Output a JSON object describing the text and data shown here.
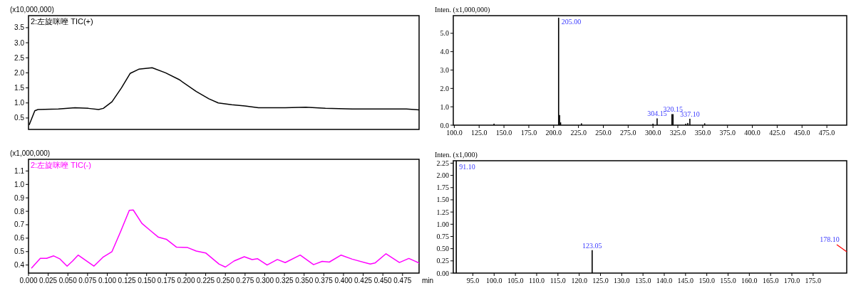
{
  "chart_data": [
    {
      "type": "line",
      "title": "2:左旋咪唑 TIC(+)",
      "ylabel": "(x10,000,000)",
      "xlim": [
        0,
        0.496
      ],
      "ylim": [
        0.12,
        3.9
      ],
      "tick_labels": "y",
      "yticks": [
        {
          "value": 0.5,
          "label": "0.5"
        },
        {
          "value": 1,
          "label": "1.0"
        },
        {
          "value": 1.5,
          "label": "1.5"
        },
        {
          "value": 2,
          "label": "2.0"
        },
        {
          "value": 2.5,
          "label": "2.5"
        },
        {
          "value": 3,
          "label": "3.0"
        },
        {
          "value": 3.5,
          "label": "3.5"
        }
      ],
      "series": [
        {
          "color": "#000000",
          "x": [
            0.001,
            0.008,
            0.012,
            0.038,
            0.059,
            0.076,
            0.089,
            0.095,
            0.106,
            0.118,
            0.129,
            0.14,
            0.157,
            0.174,
            0.191,
            0.213,
            0.229,
            0.241,
            0.258,
            0.275,
            0.292,
            0.326,
            0.352,
            0.377,
            0.411,
            0.445,
            0.48,
            0.496
          ],
          "values": [
            0.28,
            0.74,
            0.78,
            0.8,
            0.84,
            0.82,
            0.78,
            0.82,
            1.04,
            1.5,
            1.98,
            2.12,
            2.17,
            2.0,
            1.78,
            1.38,
            1.14,
            1.0,
            0.94,
            0.9,
            0.84,
            0.84,
            0.86,
            0.82,
            0.8,
            0.8,
            0.8,
            0.77
          ]
        }
      ]
    },
    {
      "type": "line",
      "title": "2:左旋咪唑 TIC(-)",
      "ylabel": "(x1,000,000)",
      "xlabel": "min",
      "xlim": [
        0,
        0.496
      ],
      "ylim": [
        0.34,
        1.187
      ],
      "xticks": [
        {
          "value": 0,
          "label": "0.000"
        },
        {
          "value": 0.025,
          "label": "0.025"
        },
        {
          "value": 0.05,
          "label": "0.050"
        },
        {
          "value": 0.075,
          "label": "0.075"
        },
        {
          "value": 0.1,
          "label": "0.100"
        },
        {
          "value": 0.125,
          "label": "0.125"
        },
        {
          "value": 0.15,
          "label": "0.150"
        },
        {
          "value": 0.175,
          "label": "0.175"
        },
        {
          "value": 0.2,
          "label": "0.200"
        },
        {
          "value": 0.225,
          "label": "0.225"
        },
        {
          "value": 0.25,
          "label": "0.250"
        },
        {
          "value": 0.275,
          "label": "0.275"
        },
        {
          "value": 0.3,
          "label": "0.300"
        },
        {
          "value": 0.325,
          "label": "0.325"
        },
        {
          "value": 0.35,
          "label": "0.350"
        },
        {
          "value": 0.375,
          "label": "0.375"
        },
        {
          "value": 0.4,
          "label": "0.400"
        },
        {
          "value": 0.425,
          "label": "0.425"
        },
        {
          "value": 0.45,
          "label": "0.450"
        },
        {
          "value": 0.475,
          "label": "0.475"
        }
      ],
      "yticks": [
        0.4,
        0.5,
        0.6,
        0.7,
        0.8,
        0.9,
        {
          "value": 1,
          "label": "1.0"
        },
        1.1
      ],
      "series": [
        {
          "color": "#ff00ff",
          "x": [
            0.004,
            0.015,
            0.023,
            0.032,
            0.04,
            0.049,
            0.056,
            0.063,
            0.072,
            0.083,
            0.095,
            0.106,
            0.117,
            0.128,
            0.133,
            0.144,
            0.154,
            0.165,
            0.175,
            0.188,
            0.202,
            0.213,
            0.225,
            0.242,
            0.25,
            0.261,
            0.274,
            0.284,
            0.291,
            0.303,
            0.316,
            0.326,
            0.345,
            0.362,
            0.373,
            0.382,
            0.397,
            0.411,
            0.434,
            0.44,
            0.454,
            0.471,
            0.483,
            0.496
          ],
          "values": [
            0.378,
            0.45,
            0.45,
            0.468,
            0.445,
            0.392,
            0.43,
            0.474,
            0.437,
            0.392,
            0.46,
            0.5,
            0.65,
            0.807,
            0.81,
            0.71,
            0.66,
            0.607,
            0.592,
            0.533,
            0.53,
            0.504,
            0.49,
            0.407,
            0.385,
            0.43,
            0.462,
            0.441,
            0.447,
            0.4,
            0.441,
            0.418,
            0.474,
            0.403,
            0.427,
            0.422,
            0.474,
            0.444,
            0.407,
            0.415,
            0.484,
            0.419,
            0.449,
            0.415
          ]
        }
      ]
    },
    {
      "type": "bar",
      "ylabel": "Inten. (x1,000,000)",
      "xlim": [
        99,
        495
      ],
      "ylim": [
        0,
        5.96
      ],
      "xticks": [
        {
          "value": 100,
          "label": "100.0"
        },
        {
          "value": 125,
          "label": "125.0"
        },
        {
          "value": 150,
          "label": "150.0"
        },
        {
          "value": 175,
          "label": "175.0"
        },
        {
          "value": 200,
          "label": "200.0"
        },
        {
          "value": 225,
          "label": "225.0"
        },
        {
          "value": 250,
          "label": "250.0"
        },
        {
          "value": 275,
          "label": "275.0"
        },
        {
          "value": 300,
          "label": "300.0"
        },
        {
          "value": 325,
          "label": "325.0"
        },
        {
          "value": 350,
          "label": "350.0"
        },
        {
          "value": 375,
          "label": "375.0"
        },
        {
          "value": 400,
          "label": "400.0"
        },
        {
          "value": 425,
          "label": "425.0"
        },
        {
          "value": 450,
          "label": "450.0"
        },
        {
          "value": 475,
          "label": "475.0"
        }
      ],
      "yticks": [
        {
          "value": 0,
          "label": "0.0"
        },
        {
          "value": 1,
          "label": "1.0"
        },
        {
          "value": 2,
          "label": "2.0"
        },
        {
          "value": 3,
          "label": "3.0"
        },
        {
          "value": 4,
          "label": "4.0"
        },
        {
          "value": 5,
          "label": "5.0"
        }
      ],
      "x": [
        140,
        205,
        206,
        207,
        228,
        300,
        304.15,
        319.1,
        320.15,
        333,
        335,
        337.1,
        352
      ],
      "series": [
        {
          "color": "#000000",
          "values": [
            0.08,
            5.85,
            0.55,
            0.15,
            0.1,
            0.08,
            0.37,
            0.6,
            0.6,
            0.08,
            0.12,
            0.35,
            0.1
          ]
        }
      ],
      "value_labels": [
        null,
        "205.00",
        null,
        null,
        null,
        null,
        "304.15",
        null,
        "320.15",
        null,
        null,
        "337.10",
        null
      ]
    },
    {
      "type": "bar",
      "ylabel": "Inten. (x1,000)",
      "xlim": [
        90.4,
        182.9
      ],
      "ylim": [
        0,
        2.3
      ],
      "xticks": [
        {
          "value": 95,
          "label": "95.0"
        },
        {
          "value": 100,
          "label": "100.0"
        },
        {
          "value": 105,
          "label": "105.0"
        },
        {
          "value": 110,
          "label": "110.0"
        },
        {
          "value": 115,
          "label": "115.0"
        },
        {
          "value": 120,
          "label": "120.0"
        },
        {
          "value": 125,
          "label": "125.0"
        },
        {
          "value": 130,
          "label": "130.0"
        },
        {
          "value": 135,
          "label": "135.0"
        },
        {
          "value": 140,
          "label": "140.0"
        },
        {
          "value": 145,
          "label": "145.0"
        },
        {
          "value": 150,
          "label": "150.0"
        },
        {
          "value": 155,
          "label": "155.0"
        },
        {
          "value": 160,
          "label": "160.0"
        },
        {
          "value": 165,
          "label": "165.0"
        },
        {
          "value": 170,
          "label": "170.0"
        },
        {
          "value": 175,
          "label": "175.0"
        }
      ],
      "yticks": [
        {
          "value": 0,
          "label": "0.00"
        },
        {
          "value": 0.25,
          "label": "0.25"
        },
        {
          "value": 0.5,
          "label": "0.50"
        },
        {
          "value": 0.75,
          "label": "0.75"
        },
        {
          "value": 1,
          "label": "1.00"
        },
        {
          "value": 1.25,
          "label": "1.25"
        },
        {
          "value": 1.5,
          "label": "1.50"
        },
        {
          "value": 1.75,
          "label": "1.75"
        },
        {
          "value": 2,
          "label": "2.00"
        },
        {
          "value": 2.25,
          "label": "2.25"
        }
      ],
      "x": [
        91.1,
        123.05
      ],
      "series": [
        {
          "color": "#000000",
          "values": [
            2.3,
            0.47
          ]
        }
      ],
      "value_labels": [
        "91.10",
        "123.05"
      ],
      "annotations": [
        "178.10"
      ]
    }
  ]
}
